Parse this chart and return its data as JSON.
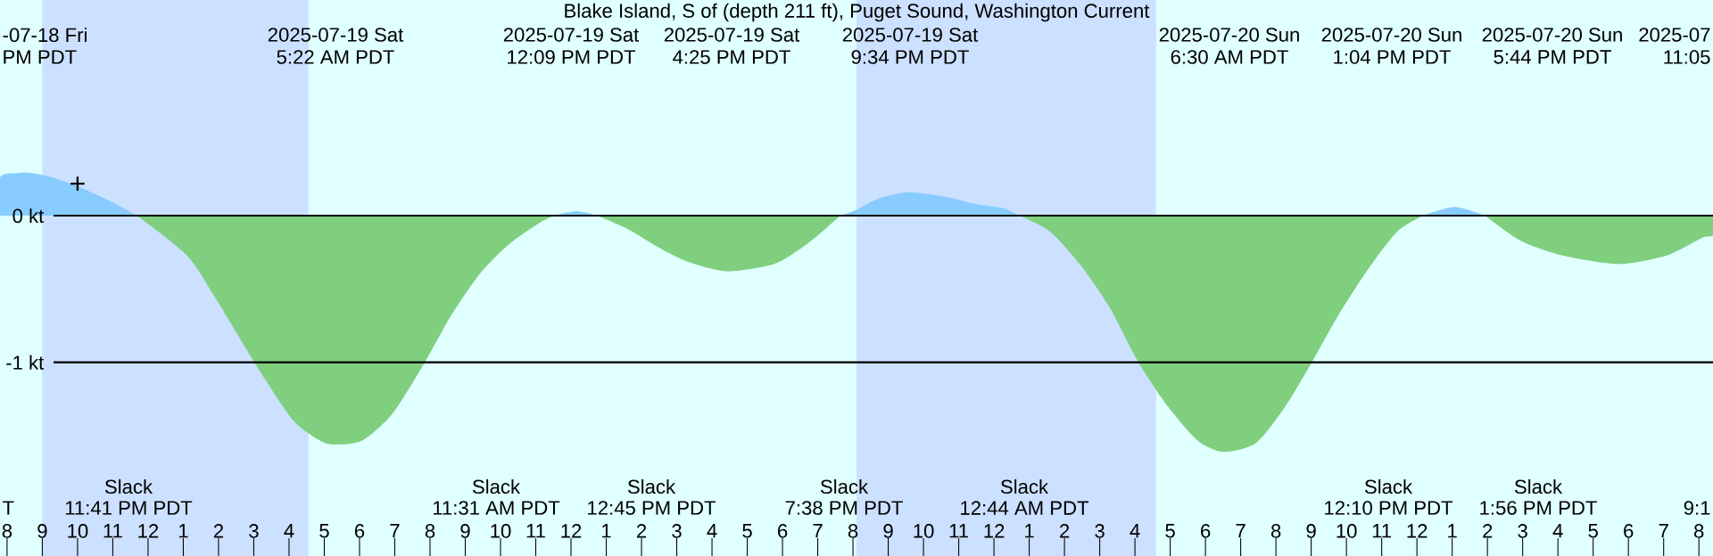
{
  "chart_data": {
    "type": "area",
    "title": "Blake Island, S of (depth 211 ft), Puget Sound, Washington Current",
    "xlim": [
      "2025-07-18T19:48",
      "2025-07-20T20:24"
    ],
    "ylim": [
      -2.32,
      1.47
    ],
    "xticks": [
      {
        "value": "2025-07-18T20:00",
        "label": "8"
      },
      {
        "value": "2025-07-18T21:00",
        "label": "9"
      },
      {
        "value": "2025-07-18T22:00",
        "label": "10"
      },
      {
        "value": "2025-07-18T23:00",
        "label": "11"
      },
      {
        "value": "2025-07-19T00:00",
        "label": "12"
      },
      {
        "value": "2025-07-19T01:00",
        "label": "1"
      },
      {
        "value": "2025-07-19T02:00",
        "label": "2"
      },
      {
        "value": "2025-07-19T03:00",
        "label": "3"
      },
      {
        "value": "2025-07-19T04:00",
        "label": "4"
      },
      {
        "value": "2025-07-19T05:00",
        "label": "5"
      },
      {
        "value": "2025-07-19T06:00",
        "label": "6"
      },
      {
        "value": "2025-07-19T07:00",
        "label": "7"
      },
      {
        "value": "2025-07-19T08:00",
        "label": "8"
      },
      {
        "value": "2025-07-19T09:00",
        "label": "9"
      },
      {
        "value": "2025-07-19T10:00",
        "label": "10"
      },
      {
        "value": "2025-07-19T11:00",
        "label": "11"
      },
      {
        "value": "2025-07-19T12:00",
        "label": "12"
      },
      {
        "value": "2025-07-19T13:00",
        "label": "1"
      },
      {
        "value": "2025-07-19T14:00",
        "label": "2"
      },
      {
        "value": "2025-07-19T15:00",
        "label": "3"
      },
      {
        "value": "2025-07-19T16:00",
        "label": "4"
      },
      {
        "value": "2025-07-19T17:00",
        "label": "5"
      },
      {
        "value": "2025-07-19T18:00",
        "label": "6"
      },
      {
        "value": "2025-07-19T19:00",
        "label": "7"
      },
      {
        "value": "2025-07-19T20:00",
        "label": "8"
      },
      {
        "value": "2025-07-19T21:00",
        "label": "9"
      },
      {
        "value": "2025-07-19T22:00",
        "label": "10"
      },
      {
        "value": "2025-07-19T23:00",
        "label": "11"
      },
      {
        "value": "2025-07-20T00:00",
        "label": "12"
      },
      {
        "value": "2025-07-20T01:00",
        "label": "1"
      },
      {
        "value": "2025-07-20T02:00",
        "label": "2"
      },
      {
        "value": "2025-07-20T03:00",
        "label": "3"
      },
      {
        "value": "2025-07-20T04:00",
        "label": "4"
      },
      {
        "value": "2025-07-20T05:00",
        "label": "5"
      },
      {
        "value": "2025-07-20T06:00",
        "label": "6"
      },
      {
        "value": "2025-07-20T07:00",
        "label": "7"
      },
      {
        "value": "2025-07-20T08:00",
        "label": "8"
      },
      {
        "value": "2025-07-20T09:00",
        "label": "9"
      },
      {
        "value": "2025-07-20T10:00",
        "label": "10"
      },
      {
        "value": "2025-07-20T11:00",
        "label": "11"
      },
      {
        "value": "2025-07-20T12:00",
        "label": "12"
      },
      {
        "value": "2025-07-20T13:00",
        "label": "1"
      },
      {
        "value": "2025-07-20T14:00",
        "label": "2"
      },
      {
        "value": "2025-07-20T15:00",
        "label": "3"
      },
      {
        "value": "2025-07-20T16:00",
        "label": "4"
      },
      {
        "value": "2025-07-20T17:00",
        "label": "5"
      },
      {
        "value": "2025-07-20T18:00",
        "label": "6"
      },
      {
        "value": "2025-07-20T19:00",
        "label": "7"
      },
      {
        "value": "2025-07-20T20:00",
        "label": "8"
      }
    ],
    "yticks": [
      {
        "value": 0,
        "label": "0 kt"
      },
      {
        "value": -1,
        "label": "-1 kt"
      }
    ],
    "grid": "y",
    "bands": [
      {
        "axis": "x",
        "from": "2025-07-18T21:00",
        "to": "2025-07-19T04:33",
        "color": "#cce0ff"
      },
      {
        "axis": "x",
        "from": "2025-07-19T20:06",
        "to": "2025-07-20T04:36",
        "color": "#cce0ff"
      }
    ],
    "series": [
      {
        "color": "#88ccff",
        "x": [
          "2025-07-18T19:48",
          "2025-07-18T20:18",
          "2025-07-18T20:42",
          "2025-07-18T21:18",
          "2025-07-18T22:06",
          "2025-07-18T23:00",
          "2025-07-18T23:41",
          "2025-07-19T00:00",
          "2025-07-19T11:31",
          "2025-07-19T12:09",
          "2025-07-19T12:45",
          "2025-07-19T13:00",
          "2025-07-19T19:38",
          "2025-07-19T20:06",
          "2025-07-19T20:46",
          "2025-07-19T21:34",
          "2025-07-19T22:36",
          "2025-07-19T23:26",
          "2025-07-20T00:16",
          "2025-07-20T00:44",
          "2025-07-20T01:00",
          "2025-07-20T12:10",
          "2025-07-20T13:04",
          "2025-07-20T13:56"
        ],
        "values": [
          0.26,
          0.29,
          0.29,
          0.26,
          0.19,
          0.09,
          0,
          null,
          0,
          0.03,
          0,
          null,
          0,
          0.04,
          0.12,
          0.16,
          0.13,
          0.08,
          0.05,
          0,
          null,
          0,
          0.06,
          0
        ]
      },
      {
        "color": "#7fcf7f",
        "x": [
          "2025-07-18T23:41",
          "2025-07-19T01:06",
          "2025-07-19T01:56",
          "2025-07-19T03:01",
          "2025-07-19T04:06",
          "2025-07-19T04:56",
          "2025-07-19T05:22",
          "2025-07-19T06:06",
          "2025-07-19T06:56",
          "2025-07-19T07:51",
          "2025-07-19T08:36",
          "2025-07-19T09:26",
          "2025-07-19T10:16",
          "2025-07-19T11:06",
          "2025-07-19T11:31",
          "2025-07-19T12:00",
          "2025-07-19T12:45",
          "2025-07-19T13:36",
          "2025-07-19T14:26",
          "2025-07-19T15:16",
          "2025-07-19T16:25",
          "2025-07-19T17:46",
          "2025-07-19T18:36",
          "2025-07-19T19:16",
          "2025-07-19T19:38",
          "2025-07-19T20:00",
          "2025-07-20T00:44",
          "2025-07-20T01:36",
          "2025-07-20T02:26",
          "2025-07-20T03:16",
          "2025-07-20T04:06",
          "2025-07-20T04:56",
          "2025-07-20T05:46",
          "2025-07-20T06:30",
          "2025-07-20T07:26",
          "2025-07-20T08:16",
          "2025-07-20T09:01",
          "2025-07-20T09:46",
          "2025-07-20T10:36",
          "2025-07-20T11:26",
          "2025-07-20T12:10",
          "2025-07-20T13:00",
          "2025-07-20T13:56",
          "2025-07-20T14:56",
          "2025-07-20T16:06",
          "2025-07-20T17:44",
          "2025-07-20T19:06",
          "2025-07-20T20:06",
          "2025-07-20T20:24"
        ],
        "values": [
          0,
          -0.27,
          -0.57,
          -1.0,
          -1.39,
          -1.54,
          -1.56,
          -1.53,
          -1.35,
          -1.0,
          -0.68,
          -0.39,
          -0.19,
          -0.05,
          0,
          null,
          0,
          -0.09,
          -0.21,
          -0.31,
          -0.38,
          -0.33,
          -0.21,
          -0.08,
          0,
          null,
          0,
          -0.11,
          -0.33,
          -0.62,
          -1.0,
          -1.3,
          -1.53,
          -1.61,
          -1.55,
          -1.3,
          -1.0,
          -0.68,
          -0.37,
          -0.11,
          0,
          null,
          0,
          -0.17,
          -0.27,
          -0.33,
          -0.27,
          -0.15,
          -0.13
        ]
      }
    ],
    "annotations": [
      "-07-18 Fri",
      "PM PDT",
      "2025-07-19 Sat",
      "5:22 AM PDT",
      "2025-07-19 Sat",
      "12:09 PM PDT",
      "2025-07-19 Sat",
      "4:25 PM PDT",
      "2025-07-19 Sat",
      "9:34 PM PDT",
      "2025-07-20 Sun",
      "6:30 AM PDT",
      "2025-07-20 Sun",
      "1:04 PM PDT",
      "2025-07-20 Sun",
      "5:44 PM PDT",
      "2025-07",
      "11:05",
      "T",
      "Slack",
      "11:41 PM PDT",
      "Slack",
      "11:31 AM PDT",
      "Slack",
      "12:45 PM PDT",
      "Slack",
      "7:38 PM PDT",
      "Slack",
      "12:44 AM PDT",
      "Slack",
      "12:10 PM PDT",
      "Slack",
      "1:56 PM PDT",
      "9:1",
      {
        "text": "+",
        "x": "2025-07-18T22:00",
        "y": 0.21
      }
    ]
  }
}
